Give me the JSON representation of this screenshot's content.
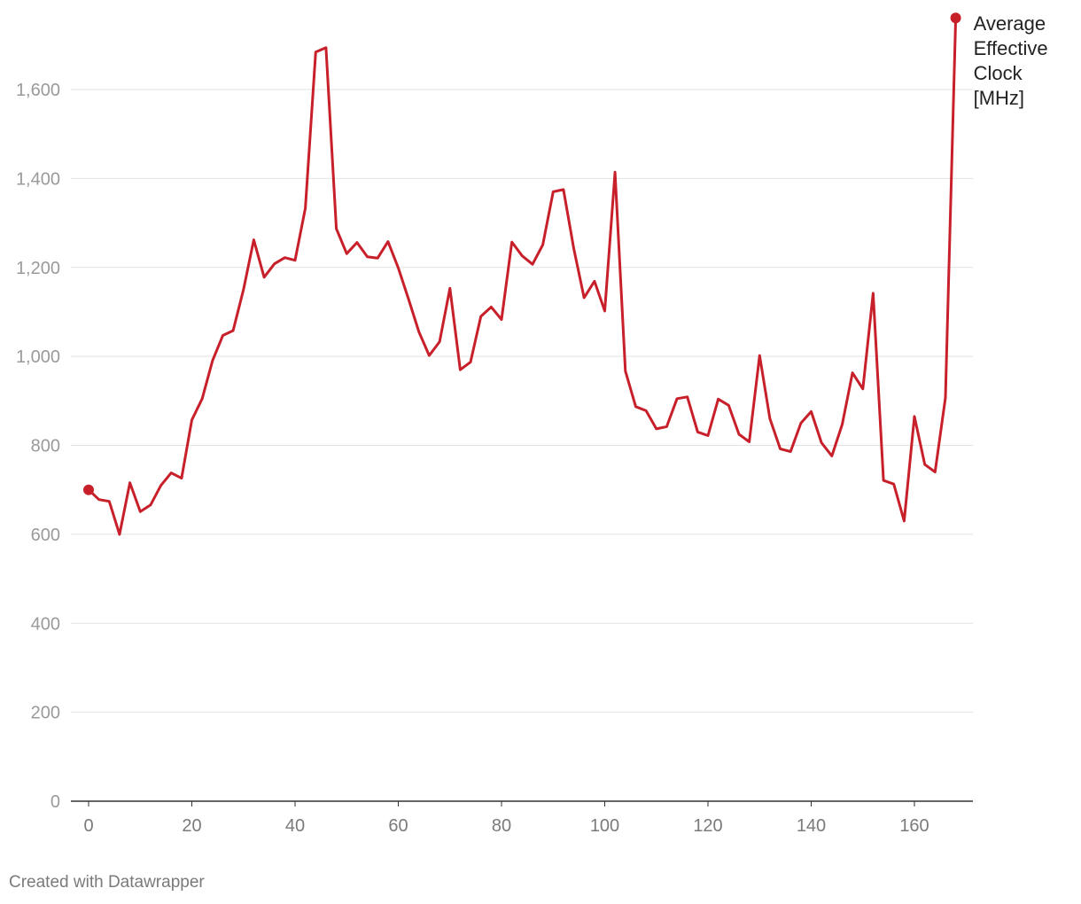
{
  "credit": "Created with Datawrapper",
  "colors": {
    "series": "#c8202a",
    "grid": "#e2e2e2",
    "axis": "#333333",
    "ytick_text": "#9a9a9a",
    "xtick_text": "#7a7a7a"
  },
  "chart_data": {
    "type": "line",
    "title": "",
    "xlabel": "",
    "ylabel": "",
    "xlim": [
      0,
      168
    ],
    "ylim": [
      0,
      1750
    ],
    "grid": true,
    "legend": "direct label at line end (top-right)",
    "y_ticks": [
      0,
      200,
      400,
      600,
      800,
      1000,
      1200,
      1400,
      1600
    ],
    "y_tick_labels": [
      "0",
      "200",
      "400",
      "600",
      "800",
      "1,000",
      "1,200",
      "1,400",
      "1,600"
    ],
    "x_ticks": [
      0,
      20,
      40,
      60,
      80,
      100,
      120,
      140,
      160
    ],
    "x_tick_labels": [
      "0",
      "20",
      "40",
      "60",
      "80",
      "100",
      "120",
      "140",
      "160"
    ],
    "series": [
      {
        "name": "Average Effective Clock [MHz]",
        "label_lines": [
          "Average",
          "Effective",
          "Clock",
          "[MHz]"
        ],
        "x": [
          0,
          2,
          4,
          6,
          8,
          10,
          12,
          14,
          16,
          18,
          20,
          22,
          24,
          26,
          28,
          30,
          32,
          34,
          36,
          38,
          40,
          42,
          44,
          46,
          48,
          50,
          52,
          54,
          56,
          58,
          60,
          62,
          64,
          66,
          68,
          70,
          72,
          74,
          76,
          78,
          80,
          82,
          84,
          86,
          88,
          90,
          92,
          94,
          96,
          98,
          100,
          102,
          104,
          106,
          108,
          110,
          112,
          114,
          116,
          118,
          120,
          122,
          124,
          126,
          128,
          130,
          132,
          134,
          136,
          138,
          140,
          142,
          144,
          146,
          148,
          150,
          152,
          154,
          156,
          158,
          160,
          162,
          164,
          166,
          168
        ],
        "y": [
          700,
          678,
          674,
          600,
          716,
          651,
          666,
          710,
          738,
          726,
          857,
          905,
          990,
          1047,
          1058,
          1150,
          1262,
          1178,
          1208,
          1222,
          1216,
          1333,
          1684,
          1694,
          1287,
          1231,
          1256,
          1224,
          1221,
          1258,
          1199,
          1128,
          1055,
          1002,
          1033,
          1153,
          970,
          987,
          1090,
          1111,
          1083,
          1257,
          1226,
          1207,
          1251,
          1370,
          1375,
          1242,
          1132,
          1169,
          1102,
          1414,
          967,
          887,
          878,
          837,
          842,
          905,
          909,
          830,
          822,
          904,
          890,
          825,
          808,
          1002,
          860,
          792,
          786,
          850,
          876,
          806,
          776,
          847,
          963,
          927,
          1142,
          721,
          713,
          630,
          865,
          757,
          740,
          907,
          1761
        ]
      }
    ]
  }
}
